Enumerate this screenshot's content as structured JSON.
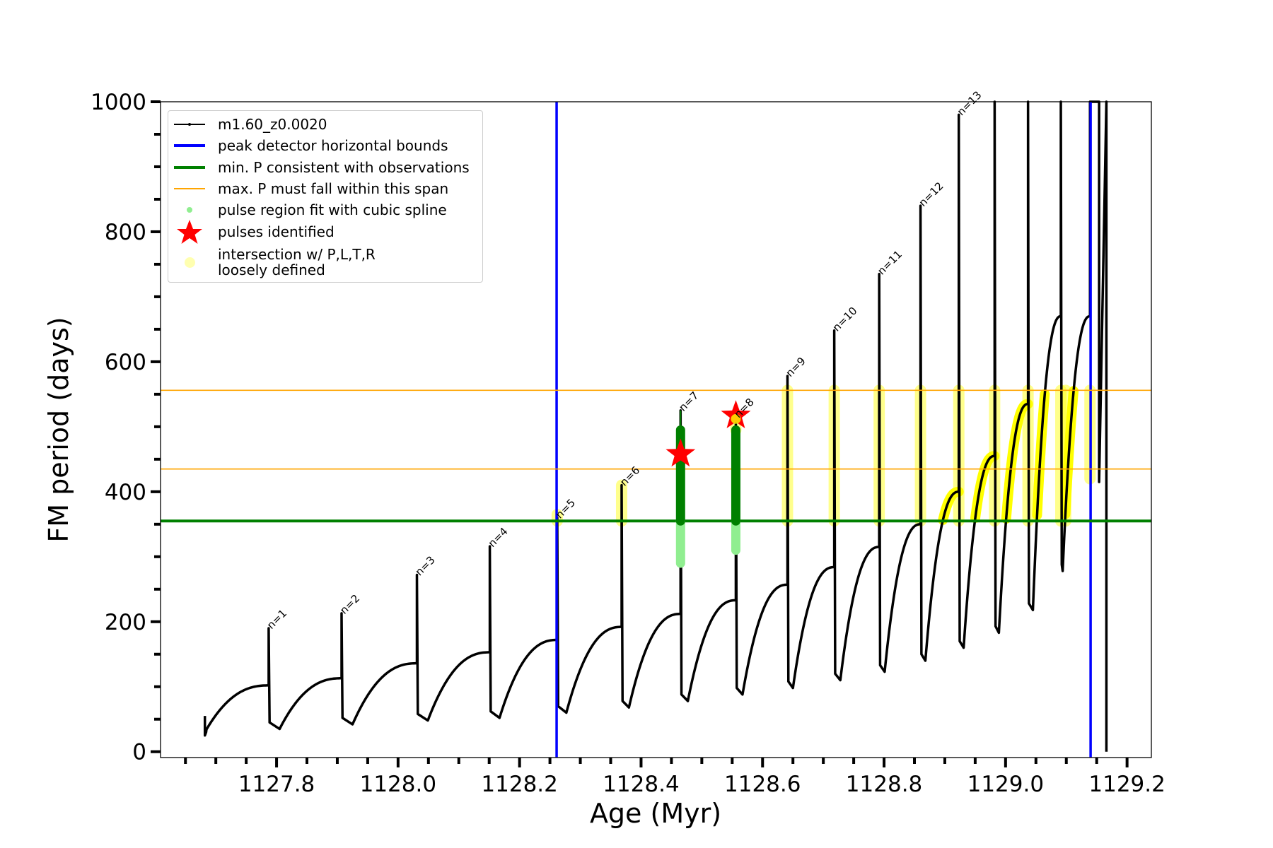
{
  "chart_data": {
    "type": "line",
    "xlabel": "Age (Myr)",
    "ylabel": "FM period (days)",
    "xlim": [
      1127.609,
      1129.24
    ],
    "ylim": [
      -9,
      1000
    ],
    "x_ticks": [
      "1127.8",
      "1128.0",
      "1128.2",
      "1128.4",
      "1128.6",
      "1128.8",
      "1129.0",
      "1129.2"
    ],
    "y_ticks": [
      "0",
      "200",
      "400",
      "600",
      "800",
      "1000"
    ],
    "grid": false,
    "legend_placement": "upper-left",
    "legend": [
      {
        "label": "m1.60_z0.0020",
        "symbol": "black-line-dot",
        "color": "#000000"
      },
      {
        "label": "peak detector horizontal bounds",
        "symbol": "thick-line",
        "color": "#0000ff"
      },
      {
        "label": "min. P consistent with observations",
        "symbol": "thick-line",
        "color": "#008000"
      },
      {
        "label": "max. P must fall within this span",
        "symbol": "thin-line",
        "color": "#ffa500"
      },
      {
        "label": "pulse region fit with cubic spline",
        "symbol": "dot",
        "color": "#90ee90"
      },
      {
        "label": "pulses identified",
        "symbol": "star",
        "color": "#ff0000"
      },
      {
        "label": "intersection w/ P,L,T,R\nloosely defined",
        "label_lines": [
          "intersection w/ P,L,T,R",
          "loosely defined"
        ],
        "symbol": "circle",
        "color": "#ffff99"
      }
    ],
    "track": {
      "name": "m1.60_z0.0020",
      "color": "#000000",
      "start": {
        "age": 1127.682,
        "P": 30
      },
      "pulses": [
        {
          "label": "n=1",
          "age": 1127.787,
          "pre_P": 102,
          "peak_P": 190,
          "dip_age": 1127.805,
          "dip_P": 35
        },
        {
          "label": "n=2",
          "age": 1127.907,
          "pre_P": 113,
          "peak_P": 213,
          "dip_age": 1127.925,
          "dip_P": 42
        },
        {
          "label": "n=3",
          "age": 1128.031,
          "pre_P": 136,
          "peak_P": 272,
          "dip_age": 1128.049,
          "dip_P": 48
        },
        {
          "label": "n=4",
          "age": 1128.151,
          "pre_P": 153,
          "peak_P": 316,
          "dip_age": 1128.167,
          "dip_P": 52
        },
        {
          "label": "n=5",
          "age": 1128.262,
          "pre_P": 172,
          "peak_P": 360,
          "dip_age": 1128.277,
          "dip_P": 60
        },
        {
          "label": "n=6",
          "age": 1128.368,
          "pre_P": 192,
          "peak_P": 410,
          "dip_age": 1128.38,
          "dip_P": 68
        },
        {
          "label": "n=7",
          "age": 1128.465,
          "pre_P": 212,
          "peak_P": 525,
          "dip_age": 1128.477,
          "dip_P": 78
        },
        {
          "label": "n=8",
          "age": 1128.556,
          "pre_P": 233,
          "peak_P": 515,
          "dip_age": 1128.567,
          "dip_P": 88
        },
        {
          "label": "n=9",
          "age": 1128.641,
          "pre_P": 257,
          "peak_P": 578,
          "dip_age": 1128.65,
          "dip_P": 98
        },
        {
          "label": "n=10",
          "age": 1128.718,
          "pre_P": 284,
          "peak_P": 648,
          "dip_age": 1128.728,
          "dip_P": 110
        },
        {
          "label": "n=11",
          "age": 1128.792,
          "pre_P": 315,
          "peak_P": 735,
          "dip_age": 1128.801,
          "dip_P": 123
        },
        {
          "label": "n=12",
          "age": 1128.86,
          "pre_P": 350,
          "peak_P": 840,
          "dip_age": 1128.868,
          "dip_P": 140
        },
        {
          "label": "n=13",
          "age": 1128.923,
          "pre_P": 400,
          "peak_P": 980,
          "dip_age": 1128.931,
          "dip_P": 160
        },
        {
          "label": "",
          "age": 1128.982,
          "pre_P": 455,
          "peak_P": 1000,
          "dip_age": 1128.989,
          "dip_P": 183
        },
        {
          "label": "",
          "age": 1129.037,
          "pre_P": 535,
          "peak_P": 1000,
          "dip_age": 1129.045,
          "dip_P": 218
        },
        {
          "label": "",
          "age": 1129.091,
          "pre_P": 670,
          "peak_P": 1000,
          "dip_age": 1129.094,
          "dip_P": 278
        }
      ],
      "end": [
        {
          "age": 1129.139,
          "P": 1000
        },
        {
          "age": 1129.154,
          "P": 1000
        },
        {
          "age": 1129.154,
          "P": 415
        },
        {
          "age": 1129.166,
          "P": 1000
        },
        {
          "age": 1129.166,
          "P": 0
        }
      ]
    },
    "vlines": [
      {
        "age": 1128.261,
        "color": "#0000ff"
      },
      {
        "age": 1129.14,
        "color": "#0000ff"
      }
    ],
    "hlines": [
      {
        "P": 355,
        "color": "#008000",
        "role": "min"
      },
      {
        "P": 556,
        "color": "#ffa500",
        "role": "max-upper"
      },
      {
        "P": 435,
        "color": "#ffa500",
        "role": "max-lower"
      }
    ],
    "spline_regions": [
      {
        "age": 1128.465,
        "P_from": 290,
        "P_to": 355,
        "color": "#90ee90"
      },
      {
        "age": 1128.556,
        "P_from": 310,
        "P_to": 355,
        "color": "#90ee90"
      },
      {
        "age": 1128.465,
        "P_from": 355,
        "P_to": 495,
        "color": "#008000"
      },
      {
        "age": 1128.556,
        "P_from": 355,
        "P_to": 495,
        "color": "#008000"
      }
    ],
    "pulses_identified": [
      {
        "age": 1128.465,
        "P": 458
      },
      {
        "age": 1128.556,
        "P": 517
      }
    ],
    "intersections": [
      {
        "age": 1128.262,
        "P_from": 355,
        "P_to": 365
      },
      {
        "age": 1128.368,
        "P_from": 355,
        "P_to": 410
      },
      {
        "age": 1128.556,
        "P_from": 495,
        "P_to": 515
      },
      {
        "age": 1128.641,
        "P_from": 355,
        "P_to": 556
      },
      {
        "age": 1128.718,
        "P_from": 355,
        "P_to": 556
      },
      {
        "age": 1128.792,
        "P_from": 355,
        "P_to": 556
      },
      {
        "age": 1128.86,
        "P_from": 355,
        "P_to": 556
      },
      {
        "age": 1128.923,
        "P_from": 355,
        "P_to": 556
      },
      {
        "age": 1128.982,
        "P_from": 355,
        "P_to": 556
      },
      {
        "age": 1129.037,
        "P_from": 355,
        "P_to": 556
      },
      {
        "age": 1129.091,
        "P_from": 355,
        "P_to": 556
      },
      {
        "age": 1129.099,
        "P_from": 355,
        "P_to": 556
      },
      {
        "age": 1129.139,
        "P_from": 420,
        "P_to": 556
      }
    ]
  }
}
